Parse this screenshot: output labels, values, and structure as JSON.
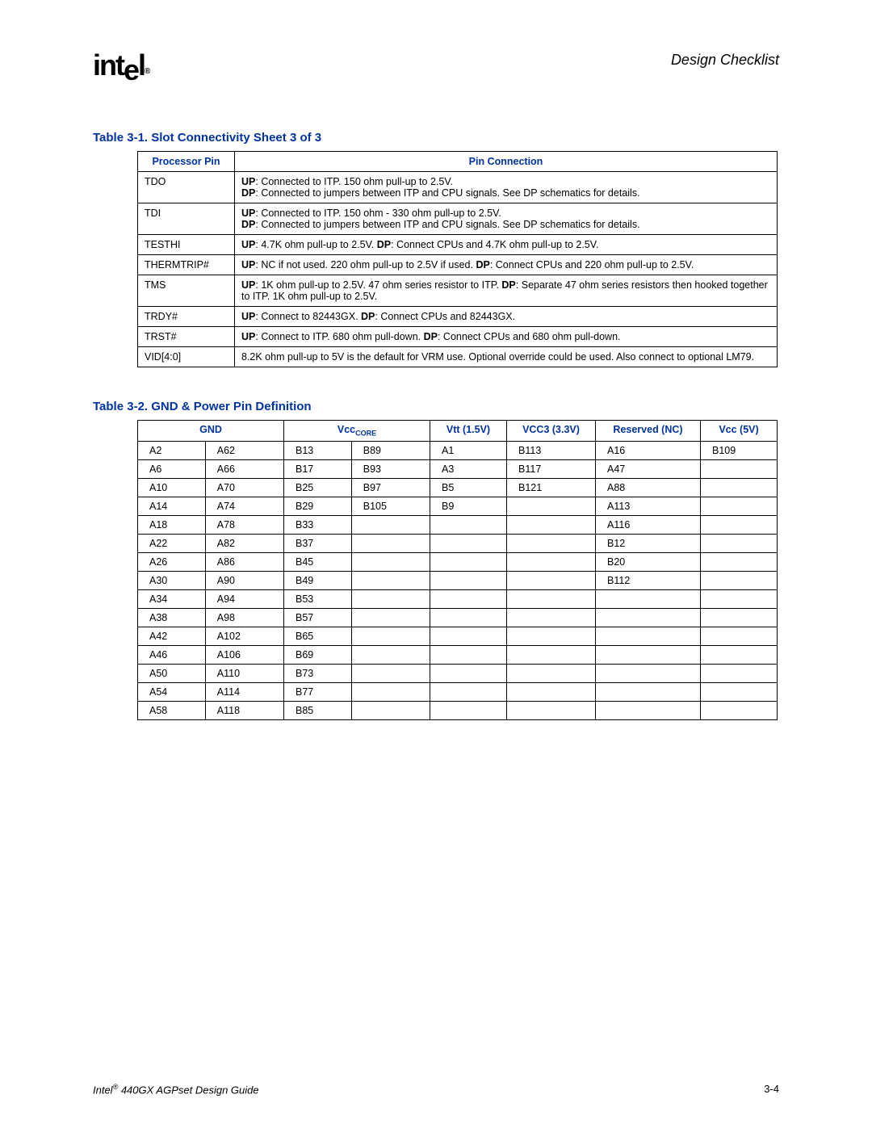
{
  "header": {
    "logo_text": "intel",
    "section_title": "Design Checklist"
  },
  "table1": {
    "caption": "Table 3-1. Slot Connectivity Sheet 3 of 3",
    "col1_header": "Processor Pin",
    "col2_header": "Pin Connection",
    "rows": [
      {
        "pin": "TDO",
        "conn_up": "Connected to ITP. 150 ohm pull-up to 2.5V.",
        "conn_dp": "Connected to jumpers between ITP and CPU signals. See DP schematics for details."
      },
      {
        "pin": "TDI",
        "conn_up": "Connected to ITP. 150 ohm - 330 ohm pull-up to 2.5V.",
        "conn_dp": "Connected to jumpers between ITP and CPU signals. See DP schematics for details."
      },
      {
        "pin": "TESTHI",
        "conn_single": "4.7K ohm pull-up to 2.5V.",
        "conn_dp_inline": "Connect CPUs and 4.7K ohm pull-up to 2.5V."
      },
      {
        "pin": "THERMTRIP#",
        "conn_single": "NC if not used. 220 ohm pull-up to 2.5V if used.",
        "conn_dp_inline": "Connect CPUs and 220 ohm pull-up to 2.5V."
      },
      {
        "pin": "TMS",
        "conn_single": "1K ohm pull-up to 2.5V. 47 ohm series resistor to ITP.",
        "conn_dp_inline": "Separate 47 ohm series resistors then hooked together to ITP. 1K ohm pull-up to 2.5V."
      },
      {
        "pin": "TRDY#",
        "conn_single": "Connect to 82443GX.",
        "conn_dp_inline": "Connect CPUs and 82443GX."
      },
      {
        "pin": "TRST#",
        "conn_single": "Connect to ITP. 680 ohm pull-down.",
        "conn_dp_inline": "Connect CPUs and 680 ohm pull-down."
      },
      {
        "pin": "VID[4:0]",
        "conn_plain": "8.2K ohm pull-up to 5V is the default for VRM use. Optional override could be used. Also connect to optional LM79."
      }
    ]
  },
  "table2": {
    "caption": "Table 3-2. GND & Power Pin Definition",
    "headers": {
      "gnd": "GND",
      "vcccore": "Vcc",
      "vcccore_sub": "CORE",
      "vtt": "Vtt (1.5V)",
      "vcc3": "VCC3 (3.3V)",
      "reserved": "Reserved (NC)",
      "vcc5": "Vcc (5V)"
    },
    "rows": [
      [
        "A2",
        "A62",
        "B13",
        "B89",
        "A1",
        "B113",
        "A16",
        "B109"
      ],
      [
        "A6",
        "A66",
        "B17",
        "B93",
        "A3",
        "B117",
        "A47",
        ""
      ],
      [
        "A10",
        "A70",
        "B25",
        "B97",
        "B5",
        "B121",
        "A88",
        ""
      ],
      [
        "A14",
        "A74",
        "B29",
        "B105",
        "B9",
        "",
        "A113",
        ""
      ],
      [
        "A18",
        "A78",
        "B33",
        "",
        "",
        "",
        "A116",
        ""
      ],
      [
        "A22",
        "A82",
        "B37",
        "",
        "",
        "",
        "B12",
        ""
      ],
      [
        "A26",
        "A86",
        "B45",
        "",
        "",
        "",
        "B20",
        ""
      ],
      [
        "A30",
        "A90",
        "B49",
        "",
        "",
        "",
        "B112",
        ""
      ],
      [
        "A34",
        "A94",
        "B53",
        "",
        "",
        "",
        "",
        ""
      ],
      [
        "A38",
        "A98",
        "B57",
        "",
        "",
        "",
        "",
        ""
      ],
      [
        "A42",
        "A102",
        "B65",
        "",
        "",
        "",
        "",
        ""
      ],
      [
        "A46",
        "A106",
        "B69",
        "",
        "",
        "",
        "",
        ""
      ],
      [
        "A50",
        "A110",
        "B73",
        "",
        "",
        "",
        "",
        ""
      ],
      [
        "A54",
        "A114",
        "B77",
        "",
        "",
        "",
        "",
        ""
      ],
      [
        "A58",
        "A118",
        "B85",
        "",
        "",
        "",
        "",
        ""
      ]
    ]
  },
  "footer": {
    "doc_title_prefix": "Intel",
    "doc_title_rest": " 440GX AGPset Design Guide",
    "page_num": "3-4"
  },
  "labels": {
    "up": "UP",
    "dp": "DP"
  },
  "colors": {
    "accent": "#0033a0",
    "text": "#000000",
    "bg": "#ffffff",
    "border": "#000000"
  }
}
